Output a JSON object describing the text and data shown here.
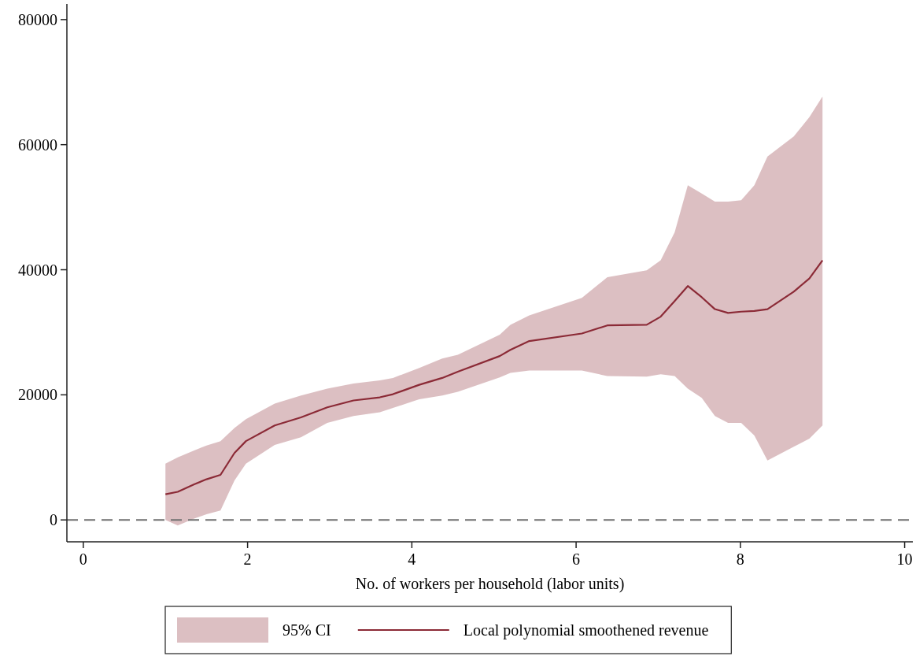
{
  "chart_data": {
    "type": "line",
    "xlabel": "No. of workers per household (labor units)",
    "x": [
      1.0,
      1.15,
      1.35,
      1.5,
      1.67,
      1.84,
      1.98,
      2.33,
      2.65,
      2.97,
      3.29,
      3.61,
      3.77,
      4.09,
      4.37,
      4.56,
      5.07,
      5.2,
      5.43,
      6.07,
      6.38,
      6.86,
      7.03,
      7.2,
      7.36,
      7.53,
      7.69,
      7.85,
      8.01,
      8.17,
      8.33,
      8.65,
      8.84,
      9.0
    ],
    "series": [
      {
        "name": "Local polynomial smoothened revenue",
        "color": "#8b2a36",
        "values": [
          4100,
          4500,
          5700,
          6500,
          7200,
          10700,
          12600,
          15100,
          16400,
          18000,
          19100,
          19600,
          20100,
          21600,
          22700,
          23700,
          26200,
          27200,
          28600,
          29800,
          31100,
          31200,
          32500,
          35000,
          37400,
          35600,
          33700,
          33100,
          33300,
          33400,
          33700,
          36500,
          38600,
          41500
        ],
        "lower": [
          0,
          -900,
          200,
          900,
          1500,
          6300,
          9000,
          12000,
          13200,
          15500,
          16600,
          17200,
          17900,
          19300,
          19900,
          20500,
          22800,
          23500,
          23900,
          23900,
          23000,
          22900,
          23300,
          23000,
          21000,
          19500,
          16600,
          15500,
          15500,
          13500,
          9500,
          11700,
          13000,
          15100
        ],
        "upper": [
          9000,
          10000,
          11100,
          11900,
          12600,
          14700,
          16100,
          18600,
          19900,
          21000,
          21800,
          22300,
          22700,
          24300,
          25800,
          26400,
          29600,
          31200,
          32700,
          35500,
          38800,
          39900,
          41500,
          46000,
          53500,
          52200,
          50900,
          50900,
          51100,
          53500,
          58100,
          61300,
          64400,
          67700
        ]
      }
    ],
    "annotations": [
      "95% CI"
    ],
    "xlim": [
      -0.2,
      10.1
    ],
    "ylim": [
      -3500,
      82500
    ],
    "xticks": [
      0,
      2,
      4,
      6,
      8,
      10
    ],
    "yticks": [
      0,
      20000,
      40000,
      60000,
      80000
    ],
    "ref_lines": [
      {
        "axis": "y",
        "value": 0,
        "color": "#707070",
        "line_style": "dashed"
      }
    ],
    "grid": false,
    "legend": "bottom",
    "marker": "none",
    "line_style": "solid"
  }
}
